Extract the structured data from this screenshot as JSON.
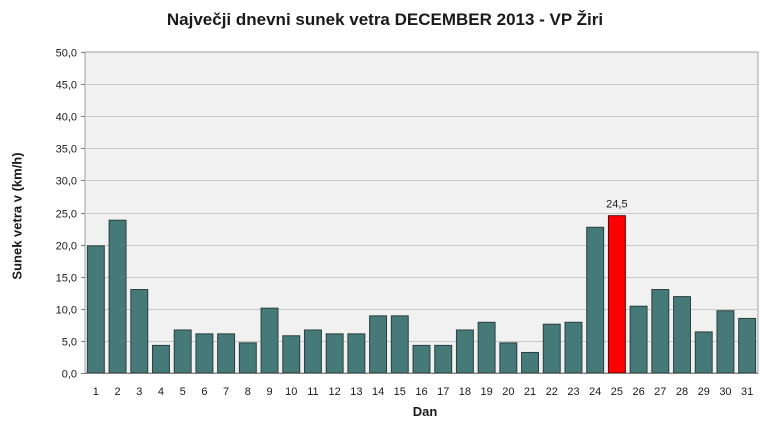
{
  "chart_data": {
    "type": "bar",
    "title": "Največji dnevni sunek vetra DECEMBER 2013 - VP Žiri",
    "xlabel": "Dan",
    "ylabel": "Sunek vetra v (km/h)",
    "ylim": [
      0,
      50
    ],
    "ytick_step": 5,
    "ytick_labels": [
      "0,0",
      "5,0",
      "10,0",
      "15,0",
      "20,0",
      "25,0",
      "30,0",
      "35,0",
      "40,0",
      "45,0",
      "50,0"
    ],
    "categories": [
      "1",
      "2",
      "3",
      "4",
      "5",
      "6",
      "7",
      "8",
      "9",
      "10",
      "11",
      "12",
      "13",
      "14",
      "15",
      "16",
      "17",
      "18",
      "19",
      "20",
      "21",
      "22",
      "23",
      "24",
      "25",
      "26",
      "27",
      "28",
      "29",
      "30",
      "31"
    ],
    "values": [
      19.8,
      23.8,
      13.0,
      4.3,
      6.7,
      6.1,
      6.1,
      4.7,
      10.1,
      5.8,
      6.7,
      6.1,
      6.1,
      8.9,
      8.9,
      4.3,
      4.3,
      6.7,
      7.9,
      4.7,
      3.2,
      7.6,
      7.9,
      22.7,
      24.5,
      10.4,
      13.0,
      11.9,
      6.4,
      9.7,
      8.5
    ],
    "highlight_index": 24,
    "highlight_label": "24,5",
    "grid": true,
    "bar_color": "#467a78",
    "highlight_color": "#ff0000",
    "plot_background": "#f1f1f1",
    "grid_color": "#c8c8c8"
  }
}
